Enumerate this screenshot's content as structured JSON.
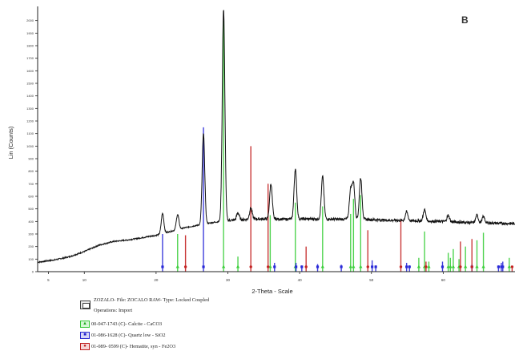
{
  "panel_label": "B",
  "legend": {
    "file_line": "ZOZALO- File: ZOCALO RAW- Type: Locked Coupled",
    "operations_line": "Operations: Import",
    "phases": [
      {
        "text": "00-047-1743 (C)- Calcite - CaCO3",
        "color": "#3ccf3c",
        "symbol": "▲",
        "icon": "triangle-icon"
      },
      {
        "text": "01-086-1628 (C)- Quartz low -  SiO2",
        "color": "#2a2ad8",
        "symbol": "■",
        "icon": "square-icon"
      },
      {
        "text": "01-089- 0599 (C)- Hematite, syn -  Fe2O3",
        "color": "#c42424",
        "symbol": "●",
        "icon": "circle-icon"
      }
    ]
  },
  "chart_data": {
    "type": "line",
    "xlabel": "2-Theta - Scale",
    "ylabel": "Lin (Counts)",
    "xlim": [
      3.5,
      70
    ],
    "ylim": [
      0,
      2100
    ],
    "xticks": [
      5,
      10,
      20,
      30,
      40,
      50,
      60
    ],
    "xtick_labels": [
      "5",
      "10",
      "20",
      "30",
      "40",
      "50",
      "60"
    ],
    "yticks": [
      0,
      100,
      200,
      300,
      400,
      500,
      600,
      700,
      800,
      900,
      1000,
      1100,
      1200,
      1300,
      1400,
      1500,
      1600,
      1700,
      1800,
      1900,
      2000
    ],
    "ytick_labels": [
      "0",
      "100",
      "200",
      "300",
      "400",
      "500",
      "600",
      "700",
      "800",
      "900",
      "1000",
      "1100",
      "1200",
      "1300",
      "1400",
      "1500",
      "1600",
      "1700",
      "1800",
      "1900",
      "2000"
    ],
    "pattern": {
      "name": "ZOZALO",
      "color": "#111111",
      "background": [
        [
          3.5,
          75
        ],
        [
          6,
          95
        ],
        [
          8,
          120
        ],
        [
          10,
          160
        ],
        [
          12,
          210
        ],
        [
          14,
          240
        ],
        [
          16,
          252
        ],
        [
          18,
          270
        ],
        [
          20,
          290
        ],
        [
          22,
          320
        ],
        [
          24,
          350
        ],
        [
          26,
          372
        ],
        [
          28,
          392
        ],
        [
          30,
          408
        ],
        [
          32,
          415
        ],
        [
          34,
          420
        ],
        [
          36,
          420
        ],
        [
          38,
          418
        ],
        [
          40,
          420
        ],
        [
          42,
          420
        ],
        [
          44,
          418
        ],
        [
          46,
          418
        ],
        [
          48,
          418
        ],
        [
          50,
          415
        ],
        [
          52,
          410
        ],
        [
          54,
          408
        ],
        [
          56,
          405
        ],
        [
          58,
          402
        ],
        [
          60,
          400
        ],
        [
          62,
          395
        ],
        [
          64,
          390
        ],
        [
          66,
          388
        ],
        [
          68,
          385
        ],
        [
          70,
          382
        ]
      ],
      "peaks": [
        {
          "x": 20.9,
          "height": 160
        },
        {
          "x": 23.0,
          "height": 120
        },
        {
          "x": 26.6,
          "height": 720
        },
        {
          "x": 29.4,
          "height": 1690
        },
        {
          "x": 31.4,
          "height": 55
        },
        {
          "x": 33.2,
          "height": 90
        },
        {
          "x": 36.0,
          "height": 280
        },
        {
          "x": 39.4,
          "height": 400
        },
        {
          "x": 43.2,
          "height": 340
        },
        {
          "x": 47.1,
          "height": 230
        },
        {
          "x": 47.5,
          "height": 280
        },
        {
          "x": 48.5,
          "height": 330
        },
        {
          "x": 54.9,
          "height": 70
        },
        {
          "x": 57.4,
          "height": 90
        },
        {
          "x": 60.7,
          "height": 50
        },
        {
          "x": 64.7,
          "height": 60
        },
        {
          "x": 65.6,
          "height": 50
        }
      ]
    },
    "series": [
      {
        "name": "00-047-1743 (C)- Calcite - CaCO3",
        "color": "#3ccf3c",
        "marker": "triangle",
        "sticks": [
          [
            23.0,
            300
          ],
          [
            29.4,
            2000
          ],
          [
            31.4,
            120
          ],
          [
            35.9,
            450
          ],
          [
            39.4,
            550
          ],
          [
            43.2,
            520
          ],
          [
            47.1,
            460
          ],
          [
            47.5,
            580
          ],
          [
            48.5,
            610
          ],
          [
            56.6,
            110
          ],
          [
            57.4,
            320
          ],
          [
            58.0,
            80
          ],
          [
            60.7,
            150
          ],
          [
            61.0,
            110
          ],
          [
            61.4,
            180
          ],
          [
            62.2,
            100
          ],
          [
            63.1,
            200
          ],
          [
            64.7,
            250
          ],
          [
            65.6,
            310
          ],
          [
            69.2,
            110
          ]
        ]
      },
      {
        "name": "01-086-1628 (C)- Quartz low -  SiO2",
        "color": "#2a2ad8",
        "marker": "square",
        "sticks": [
          [
            20.9,
            300
          ],
          [
            26.6,
            1150
          ],
          [
            36.5,
            70
          ],
          [
            39.5,
            70
          ],
          [
            40.3,
            50
          ],
          [
            42.5,
            60
          ],
          [
            45.8,
            55
          ],
          [
            50.1,
            90
          ],
          [
            50.6,
            50
          ],
          [
            54.9,
            70
          ],
          [
            55.3,
            50
          ],
          [
            59.9,
            80
          ],
          [
            64.0,
            60
          ],
          [
            67.7,
            50
          ],
          [
            68.1,
            70
          ],
          [
            68.3,
            80
          ]
        ]
      },
      {
        "name": "01-089- 0599 (C)- Hematite, syn -  Fe2O3",
        "color": "#c42424",
        "marker": "circle",
        "sticks": [
          [
            24.1,
            290
          ],
          [
            33.2,
            1000
          ],
          [
            35.6,
            700
          ],
          [
            40.9,
            200
          ],
          [
            49.5,
            330
          ],
          [
            54.1,
            420
          ],
          [
            57.6,
            80
          ],
          [
            62.4,
            240
          ],
          [
            64.0,
            260
          ],
          [
            69.6,
            30
          ]
        ]
      }
    ]
  }
}
